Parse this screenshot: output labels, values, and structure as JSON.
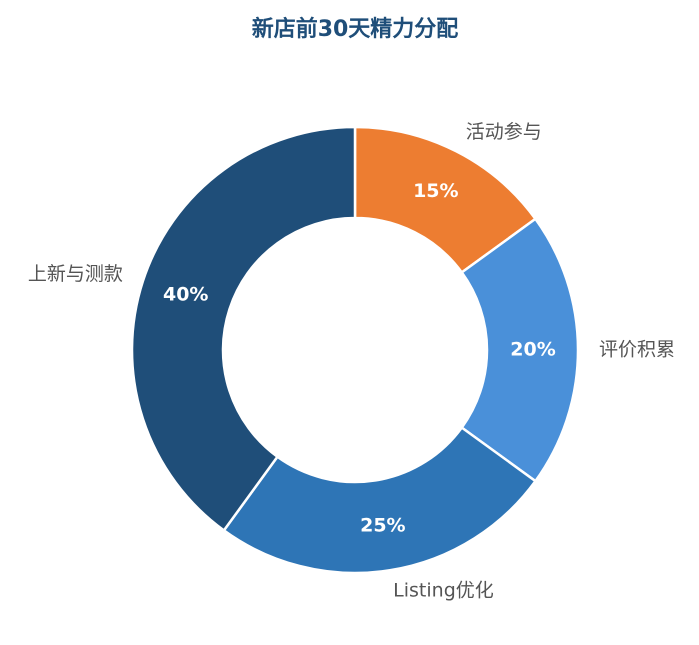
{
  "chart_data": {
    "type": "donut",
    "title": "新店前30天精力分配",
    "categories": [
      "活动参与",
      "评价积累",
      "Listing优化",
      "上新与测款"
    ],
    "values": [
      15,
      20,
      25,
      40
    ],
    "value_labels": [
      "15%",
      "20%",
      "25%",
      "40%"
    ],
    "colors": [
      "#ed7d31",
      "#4a90d9",
      "#2e75b6",
      "#1f4e79"
    ]
  }
}
